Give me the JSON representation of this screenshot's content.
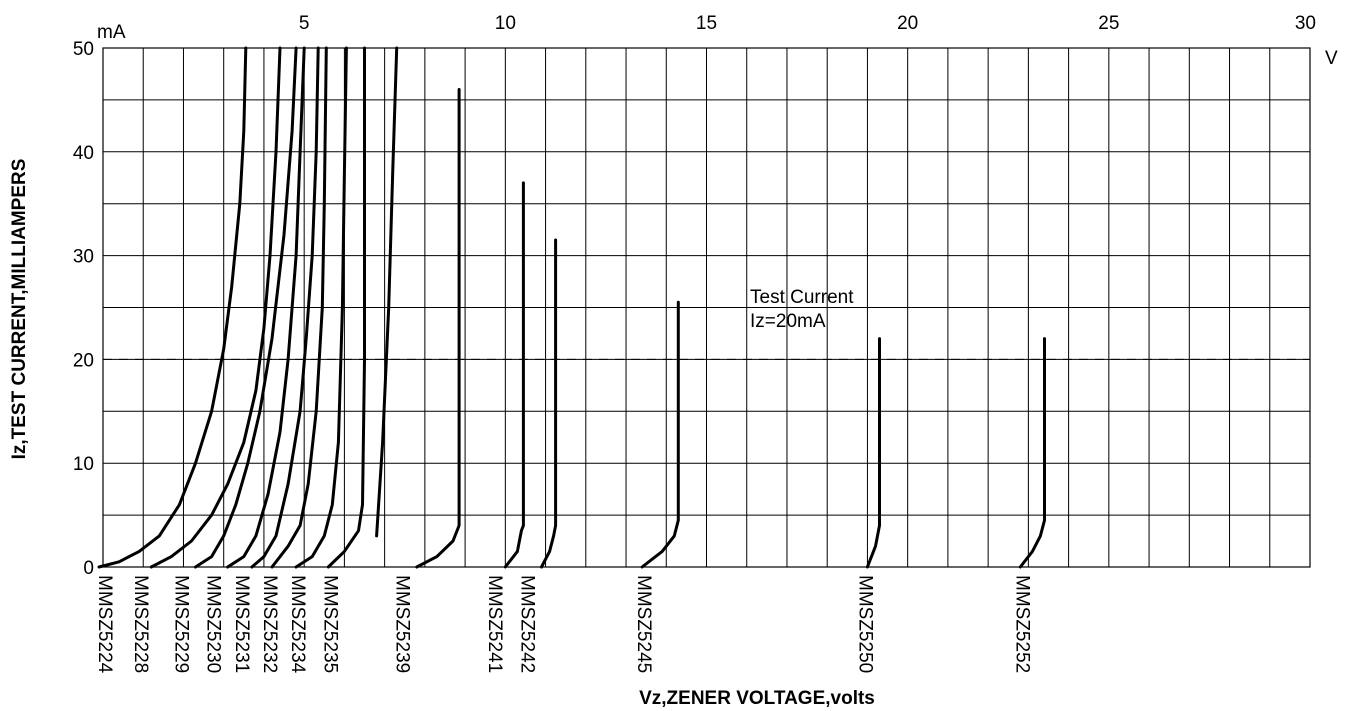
{
  "chart_data": {
    "type": "line",
    "title": "",
    "xlabel": "Vz,ZENER VOLTAGE,volts",
    "ylabel": "Iz,TEST CURRENT,MILLIAMPERS",
    "x_unit": "V",
    "y_unit": "mA",
    "xlim": [
      0,
      30
    ],
    "ylim": [
      0,
      50
    ],
    "x_ticks": [
      "5",
      "10",
      "15",
      "20",
      "25",
      "30"
    ],
    "y_ticks": [
      "0",
      "10",
      "20",
      "30",
      "40",
      "50"
    ],
    "grid": true,
    "test_current_line": 20,
    "annotation": [
      "Test Current",
      "Iz=20mA"
    ],
    "series": [
      {
        "name": "MMSZ5224",
        "points": [
          [
            -0.1,
            0
          ],
          [
            0.4,
            0.5
          ],
          [
            0.9,
            1.5
          ],
          [
            1.4,
            3
          ],
          [
            1.9,
            6
          ],
          [
            2.3,
            10
          ],
          [
            2.7,
            15
          ],
          [
            3.0,
            21
          ],
          [
            3.2,
            27
          ],
          [
            3.4,
            35
          ],
          [
            3.5,
            42
          ],
          [
            3.55,
            50
          ]
        ]
      },
      {
        "name": "MMSZ5228",
        "points": [
          [
            1.2,
            0
          ],
          [
            1.7,
            1
          ],
          [
            2.2,
            2.5
          ],
          [
            2.7,
            5
          ],
          [
            3.1,
            8
          ],
          [
            3.5,
            12
          ],
          [
            3.8,
            17
          ],
          [
            4.0,
            23
          ],
          [
            4.15,
            30
          ],
          [
            4.3,
            40
          ],
          [
            4.4,
            50
          ]
        ]
      },
      {
        "name": "MMSZ5229",
        "points": [
          [
            2.3,
            0
          ],
          [
            2.7,
            1
          ],
          [
            3.0,
            3
          ],
          [
            3.3,
            6
          ],
          [
            3.6,
            10
          ],
          [
            3.9,
            15
          ],
          [
            4.2,
            22
          ],
          [
            4.5,
            32
          ],
          [
            4.7,
            42
          ],
          [
            4.8,
            50
          ]
        ]
      },
      {
        "name": "MMSZ5230",
        "points": [
          [
            3.1,
            0
          ],
          [
            3.5,
            1
          ],
          [
            3.8,
            3
          ],
          [
            4.1,
            7
          ],
          [
            4.4,
            13
          ],
          [
            4.6,
            20
          ],
          [
            4.8,
            30
          ],
          [
            4.9,
            40
          ],
          [
            5.0,
            50
          ]
        ]
      },
      {
        "name": "MMSZ5231",
        "points": [
          [
            3.7,
            0
          ],
          [
            4.0,
            1
          ],
          [
            4.3,
            3
          ],
          [
            4.6,
            8
          ],
          [
            4.9,
            15
          ],
          [
            5.05,
            22
          ],
          [
            5.2,
            30
          ],
          [
            5.3,
            40
          ],
          [
            5.35,
            50
          ]
        ]
      },
      {
        "name": "MMSZ5232",
        "points": [
          [
            4.2,
            0
          ],
          [
            4.6,
            2
          ],
          [
            4.9,
            4
          ],
          [
            5.1,
            8
          ],
          [
            5.3,
            15
          ],
          [
            5.45,
            25
          ],
          [
            5.5,
            35
          ],
          [
            5.55,
            50
          ]
        ]
      },
      {
        "name": "MMSZ5234",
        "points": [
          [
            4.8,
            0
          ],
          [
            5.2,
            1
          ],
          [
            5.5,
            3
          ],
          [
            5.7,
            6
          ],
          [
            5.85,
            12
          ],
          [
            5.95,
            25
          ],
          [
            6.0,
            38
          ],
          [
            6.05,
            50
          ]
        ]
      },
      {
        "name": "MMSZ5235",
        "points": [
          [
            5.6,
            0
          ],
          [
            6.0,
            1.5
          ],
          [
            6.35,
            3.5
          ],
          [
            6.45,
            6
          ],
          [
            6.5,
            20
          ],
          [
            6.5,
            35
          ],
          [
            6.5,
            50
          ]
        ]
      },
      {
        "name": "",
        "points": [
          [
            6.8,
            3
          ],
          [
            6.95,
            12
          ],
          [
            7.1,
            25
          ],
          [
            7.2,
            38
          ],
          [
            7.3,
            50
          ]
        ]
      },
      {
        "name": "MMSZ5239",
        "points": [
          [
            7.8,
            0
          ],
          [
            8.3,
            1
          ],
          [
            8.7,
            2.5
          ],
          [
            8.85,
            4
          ],
          [
            8.85,
            46
          ]
        ]
      },
      {
        "name": "MMSZ5241",
        "points": [
          [
            10.0,
            0
          ],
          [
            10.3,
            1.5
          ],
          [
            10.4,
            3.5
          ],
          [
            10.45,
            4
          ],
          [
            10.45,
            37
          ]
        ]
      },
      {
        "name": "MMSZ5242",
        "points": [
          [
            10.9,
            0
          ],
          [
            11.1,
            1.5
          ],
          [
            11.2,
            3
          ],
          [
            11.25,
            4
          ],
          [
            11.25,
            31.5
          ]
        ]
      },
      {
        "name": "MMSZ5245",
        "points": [
          [
            13.4,
            0
          ],
          [
            13.9,
            1.5
          ],
          [
            14.2,
            3
          ],
          [
            14.3,
            4.5
          ],
          [
            14.3,
            25.5
          ]
        ]
      },
      {
        "name": "MMSZ5250",
        "points": [
          [
            19.0,
            0
          ],
          [
            19.2,
            2
          ],
          [
            19.3,
            4
          ],
          [
            19.3,
            22
          ]
        ]
      },
      {
        "name": "MMSZ5252",
        "points": [
          [
            22.8,
            0
          ],
          [
            23.1,
            1.5
          ],
          [
            23.3,
            3
          ],
          [
            23.4,
            4.5
          ],
          [
            23.4,
            22
          ]
        ]
      }
    ],
    "series_labels": [
      {
        "text": "MMSZ5224",
        "x": -0.1
      },
      {
        "text": "MMSZ5228",
        "x": 0.8
      },
      {
        "text": "MMSZ5229",
        "x": 1.8
      },
      {
        "text": "MMSZ5230",
        "x": 2.6
      },
      {
        "text": "MMSZ5231",
        "x": 3.3
      },
      {
        "text": "MMSZ5232",
        "x": 4.0
      },
      {
        "text": "MMSZ5234",
        "x": 4.7
      },
      {
        "text": "MMSZ5235",
        "x": 5.5
      },
      {
        "text": "MMSZ5239",
        "x": 7.3
      },
      {
        "text": "MMSZ5241",
        "x": 9.6
      },
      {
        "text": "MMSZ5242",
        "x": 10.4
      },
      {
        "text": "MMSZ5245",
        "x": 13.3
      },
      {
        "text": "MMSZ5250",
        "x": 18.8
      },
      {
        "text": "MMSZ5252",
        "x": 22.7
      }
    ]
  }
}
